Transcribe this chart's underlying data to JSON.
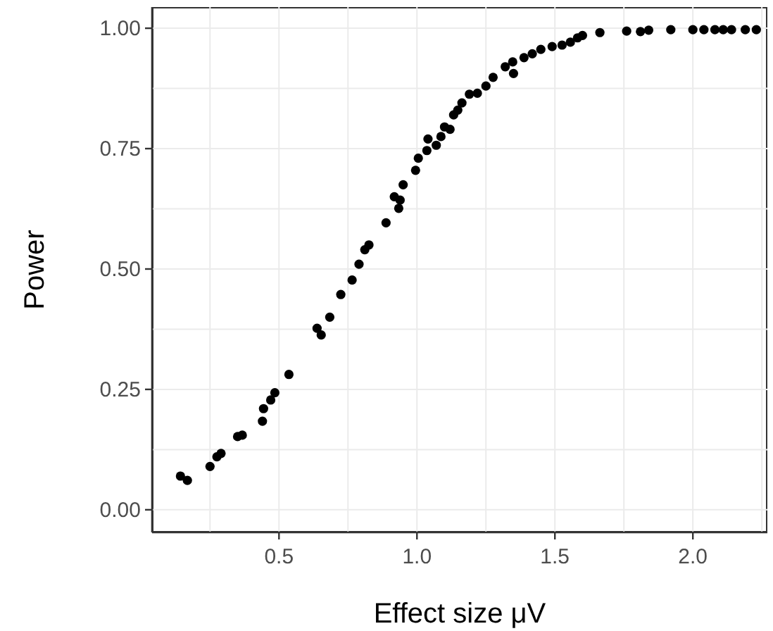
{
  "chart_data": {
    "type": "scatter",
    "xlabel": "Effect size μV",
    "ylabel": "Power",
    "color": "#000000",
    "marker": "circle",
    "grid": true,
    "xlim": [
      0.04,
      2.27
    ],
    "xticks": [
      {
        "value": 0.25,
        "label": null
      },
      0.5,
      {
        "value": 0.75,
        "label": null
      },
      {
        "value": 1,
        "label": "1.0"
      },
      {
        "value": 1.25,
        "label": null
      },
      1.5,
      {
        "value": 1.75,
        "label": null
      },
      {
        "value": 2,
        "label": "2.0"
      },
      {
        "value": 2.25,
        "label": null
      }
    ],
    "ylim": [
      -0.047,
      1.044
    ],
    "yticks": [
      {
        "value": 0,
        "label": "0.00"
      },
      {
        "value": 0.125,
        "label": null
      },
      0.25,
      {
        "value": 0.375,
        "label": null
      },
      {
        "value": 0.5,
        "label": "0.50"
      },
      {
        "value": 0.625,
        "label": null
      },
      0.75,
      {
        "value": 0.875,
        "label": null
      },
      {
        "value": 1,
        "label": "1.00"
      }
    ],
    "x": [
      0.143,
      0.168,
      0.25,
      0.275,
      0.29,
      0.35,
      0.367,
      0.44,
      0.444,
      0.47,
      0.485,
      0.536,
      0.638,
      0.653,
      0.684,
      0.724,
      0.765,
      0.79,
      0.811,
      0.826,
      0.888,
      0.918,
      0.939,
      0.934,
      0.95,
      0.995,
      1.005,
      1.036,
      1.04,
      1.07,
      1.087,
      1.1,
      1.12,
      1.133,
      1.148,
      1.163,
      1.19,
      1.219,
      1.25,
      1.276,
      1.32,
      1.347,
      1.35,
      1.388,
      1.418,
      1.449,
      1.49,
      1.526,
      1.556,
      1.582,
      1.6,
      1.663,
      1.76,
      1.81,
      1.84,
      1.92,
      2.0,
      2.04,
      2.08,
      2.11,
      2.14,
      2.19,
      2.23
    ],
    "values": [
      0.07,
      0.061,
      0.09,
      0.11,
      0.117,
      0.152,
      0.155,
      0.184,
      0.21,
      0.228,
      0.243,
      0.281,
      0.377,
      0.363,
      0.4,
      0.447,
      0.477,
      0.51,
      0.54,
      0.55,
      0.596,
      0.65,
      0.643,
      0.626,
      0.675,
      0.705,
      0.73,
      0.746,
      0.77,
      0.757,
      0.775,
      0.795,
      0.79,
      0.82,
      0.83,
      0.845,
      0.863,
      0.865,
      0.88,
      0.898,
      0.92,
      0.93,
      0.906,
      0.939,
      0.947,
      0.956,
      0.962,
      0.965,
      0.971,
      0.98,
      0.985,
      0.991,
      0.994,
      0.993,
      0.996,
      0.997,
      0.997,
      0.997,
      0.997,
      0.997,
      0.997,
      0.997,
      0.997
    ]
  }
}
